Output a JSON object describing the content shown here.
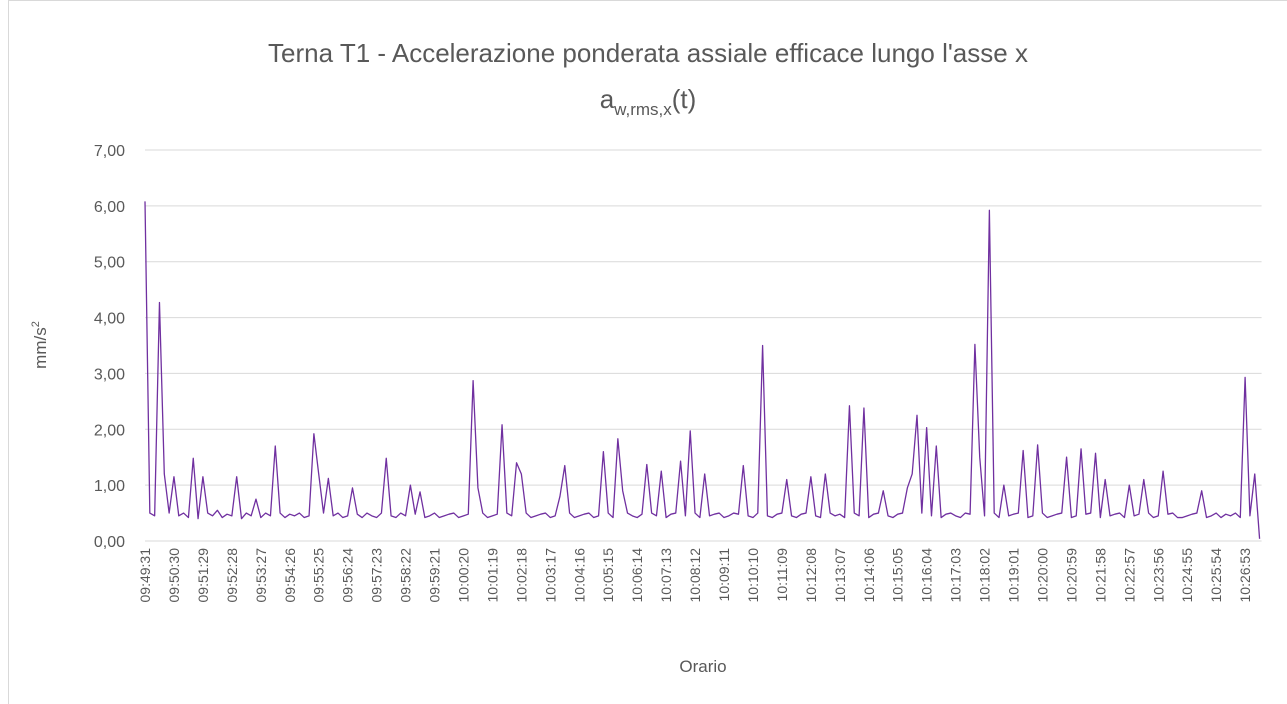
{
  "chart_data": {
    "type": "line",
    "title": "Terna T1 - Accelerazione ponderata assiale efficace lungo l'asse x",
    "subtitle": {
      "base": "a",
      "subscript": "w,rms,x",
      "suffix": "(t)"
    },
    "y_label": {
      "base": "mm/s",
      "superscript": "2"
    },
    "x_label": "Orario",
    "color": "#7030a0",
    "grid": true,
    "ylim": [
      0,
      7
    ],
    "yticks": [
      {
        "value": 0,
        "label": "0,00"
      },
      {
        "value": 1,
        "label": "1,00"
      },
      {
        "value": 2,
        "label": "2,00"
      },
      {
        "value": 3,
        "label": "3,00"
      },
      {
        "value": 4,
        "label": "4,00"
      },
      {
        "value": 5,
        "label": "5,00"
      },
      {
        "value": 6,
        "label": "6,00"
      },
      {
        "value": 7,
        "label": "7,00"
      }
    ],
    "categories": [
      "09:49:31",
      null,
      null,
      null,
      null,
      null,
      "09:50:30",
      null,
      null,
      null,
      null,
      null,
      "09:51:29",
      null,
      null,
      null,
      null,
      null,
      "09:52:28",
      null,
      null,
      null,
      null,
      null,
      "09:53:27",
      null,
      null,
      null,
      null,
      null,
      "09:54:26",
      null,
      null,
      null,
      null,
      null,
      "09:55:25",
      null,
      null,
      null,
      null,
      null,
      "09:56:24",
      null,
      null,
      null,
      null,
      null,
      "09:57:23",
      null,
      null,
      null,
      null,
      null,
      "09:58:22",
      null,
      null,
      null,
      null,
      null,
      "09:59:21",
      null,
      null,
      null,
      null,
      null,
      "10:00:20",
      null,
      null,
      null,
      null,
      null,
      "10:01:19",
      null,
      null,
      null,
      null,
      null,
      "10:02:18",
      null,
      null,
      null,
      null,
      null,
      "10:03:17",
      null,
      null,
      null,
      null,
      null,
      "10:04:16",
      null,
      null,
      null,
      null,
      null,
      "10:05:15",
      null,
      null,
      null,
      null,
      null,
      "10:06:14",
      null,
      null,
      null,
      null,
      null,
      "10:07:13",
      null,
      null,
      null,
      null,
      null,
      "10:08:12",
      null,
      null,
      null,
      null,
      null,
      "10:09:11",
      null,
      null,
      null,
      null,
      null,
      "10:10:10",
      null,
      null,
      null,
      null,
      null,
      "10:11:09",
      null,
      null,
      null,
      null,
      null,
      "10:12:08",
      null,
      null,
      null,
      null,
      null,
      "10:13:07",
      null,
      null,
      null,
      null,
      null,
      "10:14:06",
      null,
      null,
      null,
      null,
      null,
      "10:15:05",
      null,
      null,
      null,
      null,
      null,
      "10:16:04",
      null,
      null,
      null,
      null,
      null,
      "10:17:03",
      null,
      null,
      null,
      null,
      null,
      "10:18:02",
      null,
      null,
      null,
      null,
      null,
      "10:19:01",
      null,
      null,
      null,
      null,
      null,
      "10:20:00",
      null,
      null,
      null,
      null,
      null,
      "10:20:59",
      null,
      null,
      null,
      null,
      null,
      "10:21:58",
      null,
      null,
      null,
      null,
      null,
      "10:22:57",
      null,
      null,
      null,
      null,
      null,
      "10:23:56",
      null,
      null,
      null,
      null,
      null,
      "10:24:55",
      null,
      null,
      null,
      null,
      null,
      "10:25:54",
      null,
      null,
      null,
      null,
      null,
      "10:26:53",
      null,
      null,
      null
    ],
    "values": [
      6.08,
      0.5,
      0.45,
      4.27,
      1.2,
      0.5,
      1.15,
      0.45,
      0.5,
      0.42,
      1.48,
      0.4,
      1.15,
      0.5,
      0.45,
      0.55,
      0.42,
      0.48,
      0.45,
      1.15,
      0.4,
      0.5,
      0.45,
      0.75,
      0.42,
      0.5,
      0.45,
      1.7,
      0.5,
      0.42,
      0.48,
      0.45,
      0.5,
      0.42,
      0.45,
      1.92,
      1.2,
      0.5,
      1.12,
      0.45,
      0.5,
      0.42,
      0.45,
      0.95,
      0.48,
      0.42,
      0.5,
      0.45,
      0.42,
      0.5,
      1.48,
      0.45,
      0.42,
      0.5,
      0.45,
      1.0,
      0.48,
      0.88,
      0.42,
      0.45,
      0.5,
      0.42,
      0.45,
      0.48,
      0.5,
      0.42,
      0.45,
      0.48,
      2.87,
      0.95,
      0.5,
      0.42,
      0.45,
      0.48,
      2.08,
      0.5,
      0.45,
      1.4,
      1.2,
      0.5,
      0.42,
      0.45,
      0.48,
      0.5,
      0.42,
      0.45,
      0.8,
      1.35,
      0.5,
      0.42,
      0.45,
      0.48,
      0.5,
      0.42,
      0.45,
      1.6,
      0.5,
      0.42,
      1.83,
      0.9,
      0.5,
      0.45,
      0.42,
      0.48,
      1.37,
      0.5,
      0.45,
      1.25,
      0.42,
      0.48,
      0.5,
      1.43,
      0.45,
      1.97,
      0.5,
      0.42,
      1.2,
      0.45,
      0.48,
      0.5,
      0.42,
      0.45,
      0.5,
      0.48,
      1.35,
      0.45,
      0.42,
      0.5,
      3.5,
      0.45,
      0.42,
      0.48,
      0.5,
      1.1,
      0.45,
      0.42,
      0.48,
      0.5,
      1.15,
      0.45,
      0.42,
      1.2,
      0.5,
      0.45,
      0.48,
      0.42,
      2.42,
      0.5,
      0.45,
      2.38,
      0.42,
      0.48,
      0.5,
      0.9,
      0.45,
      0.42,
      0.48,
      0.5,
      0.95,
      1.2,
      2.25,
      0.5,
      2.03,
      0.45,
      1.7,
      0.42,
      0.48,
      0.5,
      0.45,
      0.42,
      0.5,
      0.48,
      3.52,
      1.5,
      0.45,
      5.92,
      0.5,
      0.42,
      1.0,
      0.45,
      0.48,
      0.5,
      1.62,
      0.42,
      0.45,
      1.72,
      0.5,
      0.42,
      0.45,
      0.48,
      0.5,
      1.5,
      0.42,
      0.45,
      1.65,
      0.48,
      0.5,
      1.57,
      0.42,
      1.1,
      0.45,
      0.48,
      0.5,
      0.42,
      1.0,
      0.45,
      0.48,
      1.1,
      0.5,
      0.42,
      0.45,
      1.25,
      0.48,
      0.5,
      0.42,
      0.42,
      0.45,
      0.48,
      0.5,
      0.9,
      0.42,
      0.45,
      0.5,
      0.42,
      0.48,
      0.45,
      0.5,
      0.42,
      2.93,
      0.45,
      1.2,
      0.04
    ]
  }
}
